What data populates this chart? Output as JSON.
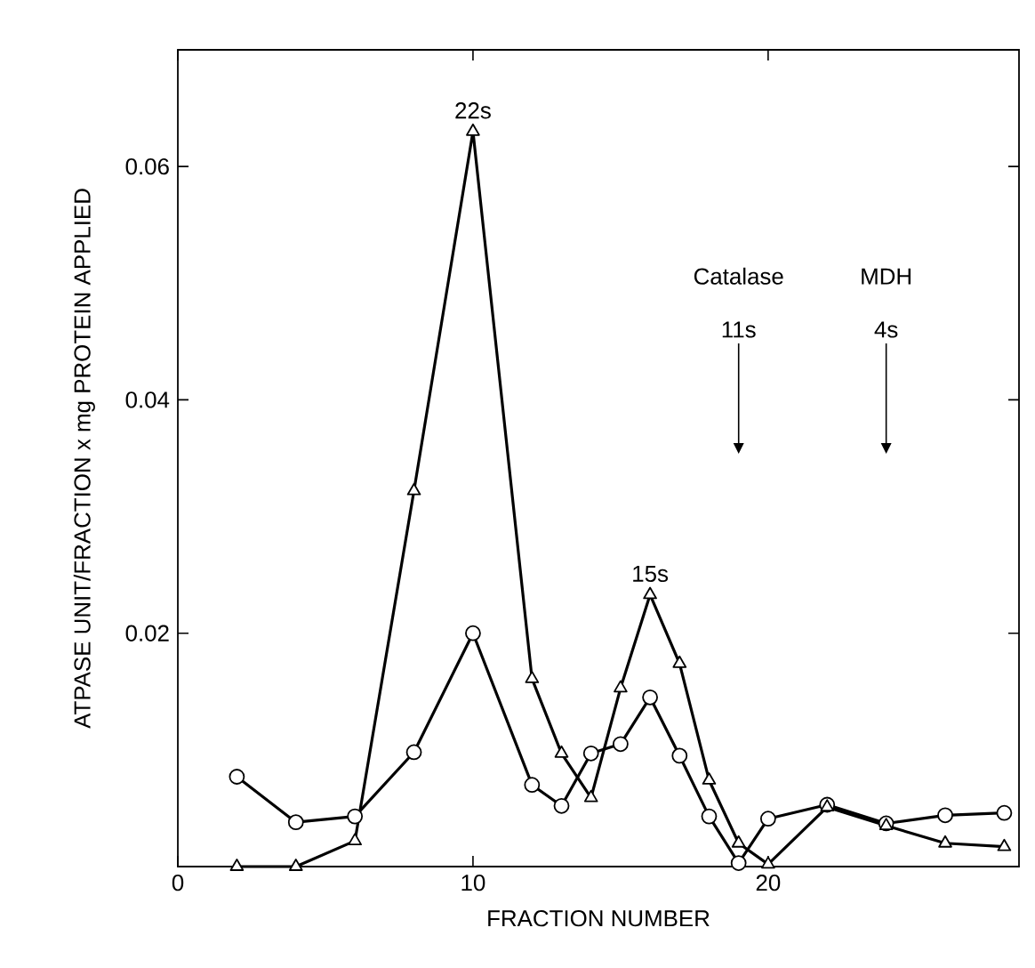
{
  "chart_data": {
    "type": "line",
    "xlabel": "FRACTION NUMBER",
    "ylabel": "ATPASE UNIT/FRACTION x mg PROTEIN APPLIED",
    "xlim": [
      0,
      28.5
    ],
    "ylim": [
      0,
      0.07
    ],
    "xticks": [
      0,
      10,
      20
    ],
    "yticks": [
      0.02,
      0.04,
      0.06
    ],
    "line_style": "solid",
    "series": [
      {
        "color": "#000000",
        "marker": "triangle",
        "x": [
          2,
          4,
          6,
          8,
          10,
          12,
          13,
          14,
          15,
          16,
          17,
          18,
          19,
          20,
          22,
          24,
          26,
          28
        ],
        "values": [
          0,
          0,
          0.0022,
          0.0322,
          0.063,
          0.0161,
          0.0097,
          0.0059,
          0.0153,
          0.0233,
          0.0174,
          0.0074,
          0.002,
          0.0002,
          0.0051,
          0.0035,
          0.002,
          0.0017
        ]
      },
      {
        "color": "#000000",
        "marker": "circle",
        "x": [
          2,
          4,
          6,
          8,
          10,
          12,
          13,
          14,
          15,
          16,
          17,
          18,
          19,
          20,
          22,
          24,
          26,
          28
        ],
        "values": [
          0.0077,
          0.0038,
          0.0043,
          0.0098,
          0.02,
          0.007,
          0.0052,
          0.0097,
          0.0105,
          0.0145,
          0.0095,
          0.0043,
          0.0003,
          0.0041,
          0.0053,
          0.0037,
          0.0044,
          0.0046
        ]
      }
    ],
    "annotations": [
      {
        "text": "22s",
        "x": 10,
        "y": 0.063
      },
      {
        "text": "15s",
        "x": 16,
        "y": 0.0233
      },
      "Catalase 11s",
      "MDH 4s"
    ]
  }
}
